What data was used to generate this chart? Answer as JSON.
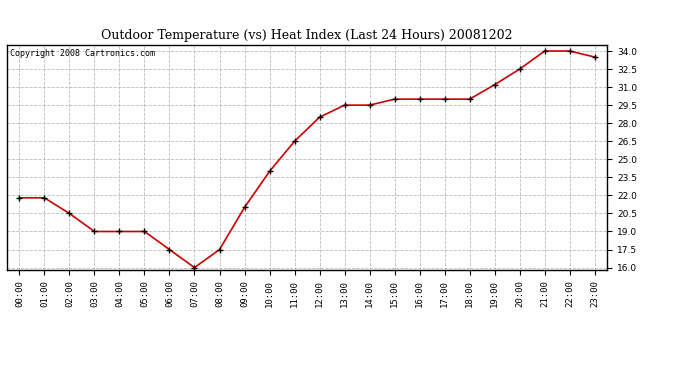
{
  "title": "Outdoor Temperature (vs) Heat Index (Last 24 Hours) 20081202",
  "copyright_text": "Copyright 2008 Cartronics.com",
  "x_labels": [
    "00:00",
    "01:00",
    "02:00",
    "03:00",
    "04:00",
    "05:00",
    "06:00",
    "07:00",
    "08:00",
    "09:00",
    "10:00",
    "11:00",
    "12:00",
    "13:00",
    "14:00",
    "15:00",
    "16:00",
    "17:00",
    "18:00",
    "19:00",
    "20:00",
    "21:00",
    "22:00",
    "23:00"
  ],
  "y_values": [
    21.8,
    21.8,
    20.5,
    19.0,
    19.0,
    19.0,
    17.5,
    16.0,
    17.5,
    21.0,
    24.0,
    26.5,
    28.5,
    29.5,
    29.5,
    30.0,
    30.0,
    30.0,
    30.0,
    31.2,
    32.5,
    34.0,
    34.0,
    33.5
  ],
  "ylim_min": 16.0,
  "ylim_max": 34.0,
  "ytick_step": 1.5,
  "line_color": "#cc0000",
  "marker_color": "#000000",
  "bg_color": "#ffffff",
  "grid_color": "#bbbbbb",
  "title_fontsize": 9,
  "copyright_fontsize": 6,
  "tick_fontsize": 6.5
}
